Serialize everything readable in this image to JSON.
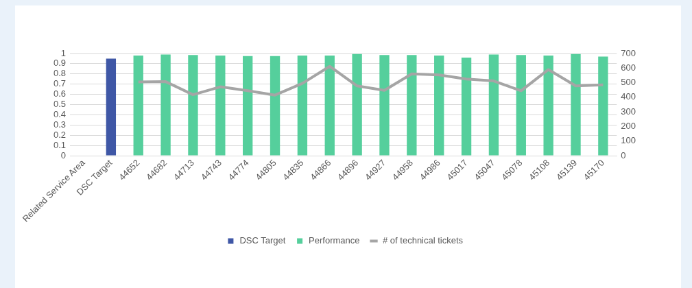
{
  "chart_data": {
    "type": "bar",
    "categories": [
      "Related Service Area",
      "DSC Target",
      "44652",
      "44682",
      "44713",
      "44743",
      "44774",
      "44805",
      "44835",
      "44866",
      "44896",
      "44927",
      "44958",
      "44986",
      "45017",
      "45047",
      "45078",
      "45108",
      "45139",
      "45170"
    ],
    "series": [
      {
        "name": "DSC Target",
        "color": "#3f57a6",
        "values": [
          null,
          0.95,
          null,
          null,
          null,
          null,
          null,
          null,
          null,
          null,
          null,
          null,
          null,
          null,
          null,
          null,
          null,
          null,
          null,
          null
        ]
      },
      {
        "name": "Performance",
        "color": "#55cf9c",
        "values": [
          null,
          null,
          0.98,
          0.99,
          0.985,
          0.98,
          0.975,
          0.975,
          0.98,
          0.98,
          0.995,
          0.985,
          0.985,
          0.98,
          0.96,
          0.99,
          0.985,
          0.98,
          0.995,
          0.97
        ]
      },
      {
        "name": "# of technical tickets",
        "type": "line",
        "axis": "y2",
        "color": "#a5a5a5",
        "values": [
          null,
          null,
          505,
          507,
          418,
          472,
          445,
          415,
          495,
          612,
          478,
          448,
          560,
          553,
          525,
          512,
          445,
          590,
          478,
          485
        ]
      }
    ],
    "ylim": [
      0,
      1
    ],
    "yticks": [
      0,
      0.1,
      0.2,
      0.3,
      0.4,
      0.5,
      0.6,
      0.7,
      0.8,
      0.9,
      1
    ],
    "y2lim": [
      0,
      700
    ],
    "y2ticks": [
      0,
      100,
      200,
      300,
      400,
      500,
      600,
      700
    ],
    "grid": "y",
    "legend": "bottom",
    "marker": "none",
    "line_style": "solid"
  }
}
